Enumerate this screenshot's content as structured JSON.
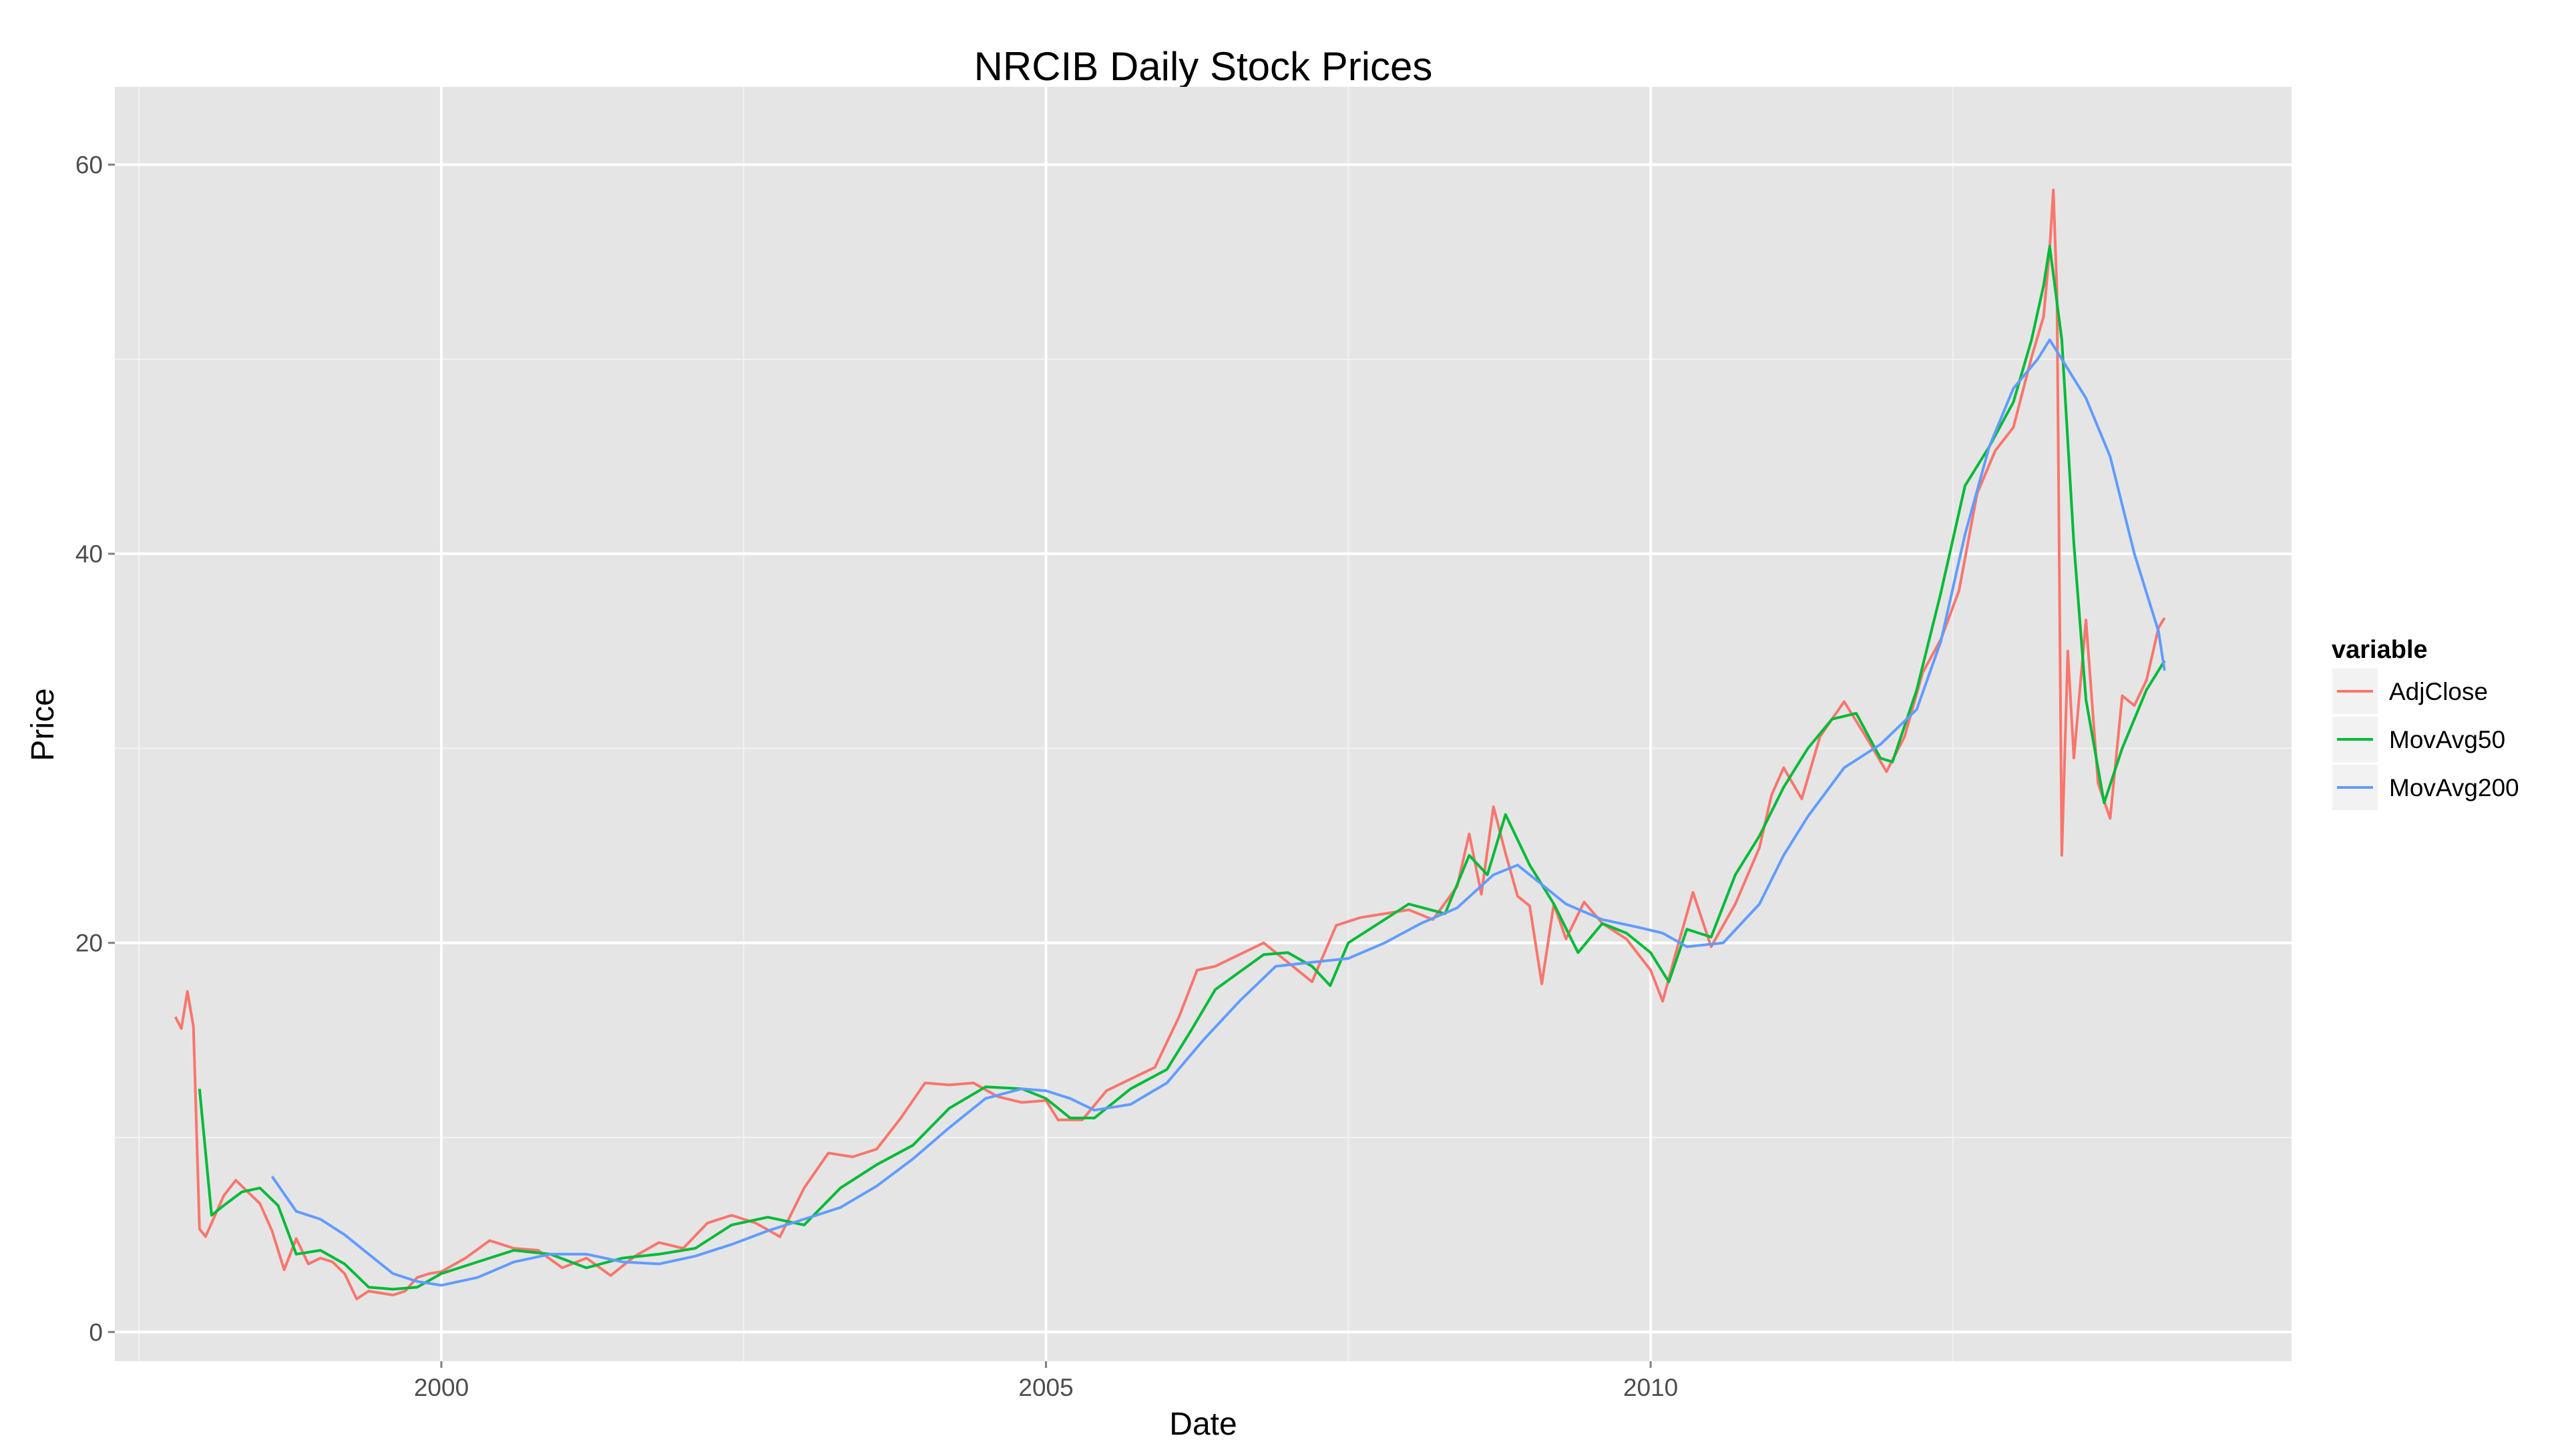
{
  "chart_data": {
    "type": "line",
    "title": "NRCIB Daily Stock Prices",
    "xlabel": "Date",
    "ylabel": "Price",
    "xlim": [
      1997.3,
      2015.3
    ],
    "ylim": [
      -1.5,
      64
    ],
    "x_ticks": [
      2000,
      2005,
      2010
    ],
    "x_tick_labels": [
      "2000",
      "2005",
      "2010"
    ],
    "y_ticks": [
      0,
      20,
      40,
      60
    ],
    "y_tick_labels": [
      "0",
      "20",
      "40",
      "60"
    ],
    "grid": true,
    "background": "#e5e5e5",
    "legend": {
      "title": "variable",
      "position": "right"
    },
    "series": [
      {
        "name": "AdjClose",
        "color": "#f8766d",
        "x": [
          1997.8,
          1997.85,
          1997.9,
          1997.95,
          1998.0,
          1998.05,
          1998.1,
          1998.2,
          1998.3,
          1998.4,
          1998.5,
          1998.6,
          1998.7,
          1998.8,
          1998.9,
          1999.0,
          1999.1,
          1999.2,
          1999.3,
          1999.4,
          1999.5,
          1999.6,
          1999.7,
          1999.8,
          1999.9,
          2000.0,
          2000.2,
          2000.4,
          2000.6,
          2000.8,
          2001.0,
          2001.2,
          2001.4,
          2001.6,
          2001.8,
          2002.0,
          2002.2,
          2002.4,
          2002.6,
          2002.8,
          2003.0,
          2003.2,
          2003.4,
          2003.6,
          2003.8,
          2004.0,
          2004.2,
          2004.4,
          2004.6,
          2004.8,
          2005.0,
          2005.1,
          2005.3,
          2005.5,
          2005.7,
          2005.9,
          2006.1,
          2006.25,
          2006.4,
          2006.6,
          2006.8,
          2007.0,
          2007.2,
          2007.4,
          2007.6,
          2007.8,
          2008.0,
          2008.2,
          2008.4,
          2008.5,
          2008.6,
          2008.7,
          2008.8,
          2008.9,
          2009.0,
          2009.1,
          2009.2,
          2009.3,
          2009.45,
          2009.6,
          2009.8,
          2010.0,
          2010.1,
          2010.2,
          2010.35,
          2010.5,
          2010.7,
          2010.9,
          2011.0,
          2011.1,
          2011.25,
          2011.4,
          2011.6,
          2011.8,
          2011.95,
          2012.1,
          2012.25,
          2012.4,
          2012.55,
          2012.7,
          2012.85,
          2013.0,
          2013.15,
          2013.25,
          2013.3,
          2013.33,
          2013.36,
          2013.4,
          2013.45,
          2013.5,
          2013.6,
          2013.7,
          2013.8,
          2013.9,
          2014.0,
          2014.1,
          2014.2,
          2014.25
        ],
        "values": [
          16.2,
          15.6,
          17.5,
          15.7,
          5.3,
          4.9,
          5.6,
          7.0,
          7.8,
          7.2,
          6.6,
          5.2,
          3.2,
          4.8,
          3.5,
          3.8,
          3.6,
          3.0,
          1.7,
          2.1,
          2.0,
          1.9,
          2.1,
          2.8,
          3.0,
          3.1,
          3.8,
          4.7,
          4.3,
          4.2,
          3.3,
          3.8,
          2.9,
          3.9,
          4.6,
          4.3,
          5.6,
          6.0,
          5.6,
          4.9,
          7.4,
          9.2,
          9.0,
          9.4,
          11.0,
          12.8,
          12.7,
          12.8,
          12.1,
          11.8,
          11.9,
          10.9,
          10.9,
          12.4,
          13.0,
          13.6,
          16.2,
          18.6,
          18.8,
          19.4,
          20.0,
          19.0,
          18.0,
          20.9,
          21.3,
          21.5,
          21.7,
          21.2,
          22.9,
          25.6,
          22.5,
          27.0,
          24.6,
          22.4,
          21.9,
          17.9,
          22.0,
          20.2,
          22.1,
          21.0,
          20.2,
          18.6,
          17.0,
          19.3,
          22.6,
          19.8,
          22.0,
          24.9,
          27.6,
          29.0,
          27.4,
          30.6,
          32.4,
          30.4,
          28.8,
          30.6,
          33.9,
          35.6,
          38.1,
          43.1,
          45.3,
          46.5,
          50.1,
          52.2,
          55.7,
          58.7,
          53.5,
          24.5,
          35.0,
          29.5,
          36.6,
          28.2,
          26.4,
          32.7,
          32.2,
          33.5,
          36.2,
          36.7
        ]
      },
      {
        "name": "MovAvg50",
        "color": "#00ba38",
        "x": [
          1998.0,
          1998.1,
          1998.2,
          1998.35,
          1998.5,
          1998.65,
          1998.8,
          1999.0,
          1999.2,
          1999.4,
          1999.6,
          1999.8,
          2000.0,
          2000.3,
          2000.6,
          2000.9,
          2001.2,
          2001.5,
          2001.8,
          2002.1,
          2002.4,
          2002.7,
          2003.0,
          2003.3,
          2003.6,
          2003.9,
          2004.2,
          2004.5,
          2004.8,
          2005.0,
          2005.2,
          2005.4,
          2005.7,
          2006.0,
          2006.2,
          2006.4,
          2006.6,
          2006.8,
          2007.0,
          2007.2,
          2007.35,
          2007.5,
          2007.7,
          2008.0,
          2008.3,
          2008.5,
          2008.65,
          2008.8,
          2009.0,
          2009.2,
          2009.4,
          2009.6,
          2009.8,
          2010.0,
          2010.15,
          2010.3,
          2010.5,
          2010.7,
          2010.9,
          2011.1,
          2011.3,
          2011.5,
          2011.7,
          2011.9,
          2012.0,
          2012.2,
          2012.4,
          2012.6,
          2012.8,
          2013.0,
          2013.15,
          2013.25,
          2013.3,
          2013.4,
          2013.5,
          2013.6,
          2013.75,
          2013.9,
          2014.1,
          2014.25
        ],
        "values": [
          12.5,
          6.0,
          6.5,
          7.2,
          7.4,
          6.5,
          4.0,
          4.2,
          3.5,
          2.3,
          2.2,
          2.3,
          3.0,
          3.6,
          4.2,
          4.0,
          3.3,
          3.8,
          4.0,
          4.3,
          5.5,
          5.9,
          5.5,
          7.4,
          8.6,
          9.6,
          11.5,
          12.6,
          12.5,
          12.0,
          11.0,
          11.0,
          12.5,
          13.5,
          15.5,
          17.6,
          18.5,
          19.4,
          19.5,
          18.8,
          17.8,
          20.0,
          20.8,
          22.0,
          21.5,
          24.5,
          23.5,
          26.6,
          24.0,
          22.0,
          19.5,
          21.0,
          20.5,
          19.5,
          18.0,
          20.7,
          20.3,
          23.5,
          25.5,
          28.0,
          30.0,
          31.5,
          31.8,
          29.5,
          29.3,
          33.0,
          38.0,
          43.5,
          45.5,
          47.8,
          51.0,
          53.8,
          55.8,
          51.0,
          40.5,
          32.5,
          27.2,
          30.0,
          33.0,
          34.5
        ]
      },
      {
        "name": "MovAvg200",
        "color": "#619cff",
        "x": [
          1998.6,
          1998.8,
          1999.0,
          1999.2,
          1999.4,
          1999.6,
          1999.8,
          2000.0,
          2000.3,
          2000.6,
          2000.9,
          2001.2,
          2001.5,
          2001.8,
          2002.1,
          2002.4,
          2002.7,
          2003.0,
          2003.3,
          2003.6,
          2003.9,
          2004.2,
          2004.5,
          2004.8,
          2005.0,
          2005.2,
          2005.4,
          2005.7,
          2006.0,
          2006.3,
          2006.6,
          2006.9,
          2007.2,
          2007.5,
          2007.8,
          2008.1,
          2008.4,
          2008.7,
          2008.9,
          2009.1,
          2009.3,
          2009.6,
          2009.9,
          2010.1,
          2010.3,
          2010.6,
          2010.9,
          2011.1,
          2011.3,
          2011.6,
          2011.9,
          2012.2,
          2012.4,
          2012.6,
          2012.8,
          2013.0,
          2013.2,
          2013.3,
          2013.4,
          2013.6,
          2013.8,
          2014.0,
          2014.2,
          2014.25
        ],
        "values": [
          8.0,
          6.2,
          5.8,
          5.0,
          4.0,
          3.0,
          2.6,
          2.4,
          2.8,
          3.6,
          4.0,
          4.0,
          3.6,
          3.5,
          3.9,
          4.5,
          5.2,
          5.8,
          6.4,
          7.5,
          8.9,
          10.5,
          12.0,
          12.5,
          12.4,
          12.0,
          11.4,
          11.7,
          12.8,
          15.0,
          17.0,
          18.8,
          19.0,
          19.2,
          20.0,
          21.0,
          21.8,
          23.5,
          24.0,
          23.0,
          22.0,
          21.2,
          20.8,
          20.5,
          19.8,
          20.0,
          22.0,
          24.5,
          26.5,
          29.0,
          30.2,
          32.0,
          35.5,
          41.0,
          45.5,
          48.5,
          50.0,
          51.0,
          50.0,
          48.0,
          45.0,
          40.0,
          36.0,
          34.0
        ]
      }
    ]
  }
}
